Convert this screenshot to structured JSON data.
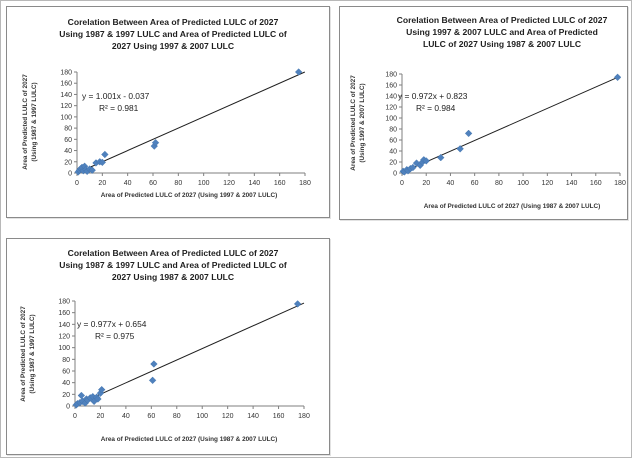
{
  "chart_data": [
    {
      "type": "scatter",
      "title": [
        "Corelation Between Area of Predicted LULC of 2027",
        "Using 1987 & 1997 LULC and Area of Predicted LULC of",
        "2027 Using 1997 & 2007 LULC"
      ],
      "xlabel": "Area of Predicted LULC of 2027 (Using 1997 & 2007 LULC)",
      "ylabel": [
        "Area of Predicted LULC of 2027",
        "(Using 1987 & 1997 LULC)"
      ],
      "xlim": [
        0,
        180
      ],
      "ylim": [
        0,
        180
      ],
      "x_ticks": [
        "0",
        "20",
        "40",
        "60",
        "80",
        "100",
        "120",
        "140",
        "160",
        "180"
      ],
      "y_ticks": [
        "0",
        "20",
        "40",
        "60",
        "80",
        "100",
        "120",
        "140",
        "160",
        "180"
      ],
      "grid": false,
      "legend": "none",
      "trendline": {
        "equation": "y = 1.001x - 0.037",
        "r2_label": "R² = 0.981",
        "slope": 1.001,
        "intercept": -0.037
      },
      "x": [
        1,
        2,
        3,
        4,
        5,
        6,
        7,
        8,
        10,
        12,
        15,
        18,
        20,
        22,
        61,
        62,
        175
      ],
      "y": [
        2,
        5,
        8,
        10,
        4,
        12,
        6,
        3,
        7,
        5,
        18,
        20,
        19,
        33,
        48,
        54,
        180
      ],
      "marker_color": "#4f81bd",
      "line_color": "#1f1f1f"
    },
    {
      "type": "scatter",
      "title": [
        "Corelation Between Area of Predicted LULC of 2027",
        "Using 1997 & 2007 LULC and Area of Predicted",
        "LULC of 2027 Using 1987 & 2007 LULC"
      ],
      "xlabel": "Area of Predicted LULC of 2027 (Using 1987 & 2007 LULC)",
      "ylabel": [
        "Area of Predicted LULC of 2027",
        "(Using 1997 & 2007 LULC)"
      ],
      "xlim": [
        0,
        180
      ],
      "ylim": [
        0,
        180
      ],
      "x_ticks": [
        "0",
        "20",
        "40",
        "60",
        "80",
        "100",
        "120",
        "140",
        "160",
        "180"
      ],
      "y_ticks": [
        "0",
        "20",
        "40",
        "60",
        "80",
        "100",
        "120",
        "140",
        "160",
        "180"
      ],
      "grid": false,
      "legend": "none",
      "trendline": {
        "equation": "y = 0.972x + 0.823",
        "r2_label": "R² = 0.984",
        "slope": 0.972,
        "intercept": 0.823
      },
      "x": [
        1,
        2,
        4,
        5,
        7,
        9,
        12,
        15,
        17,
        18,
        20,
        32,
        48,
        55,
        178
      ],
      "y": [
        3,
        2,
        6,
        4,
        8,
        10,
        18,
        14,
        20,
        24,
        22,
        28,
        44,
        72,
        174
      ],
      "marker_color": "#4f81bd",
      "line_color": "#1f1f1f"
    },
    {
      "type": "scatter",
      "title": [
        "Corelation Between Area of Predicted LULC of 2027",
        "Using 1987 & 1997 LULC and Area of Predicted LULC of",
        "2027 Using 1987 & 2007 LULC"
      ],
      "xlabel": "Area of Predicted LULC of 2027 (Using 1987 & 2007 LULC)",
      "ylabel": [
        "Area of Predicted LULC of 2027",
        "(Using 1987 & 1997 LULC)"
      ],
      "xlim": [
        0,
        180
      ],
      "ylim": [
        0,
        180
      ],
      "x_ticks": [
        "0",
        "20",
        "40",
        "60",
        "80",
        "100",
        "120",
        "140",
        "160",
        "180"
      ],
      "y_ticks": [
        "0",
        "20",
        "40",
        "60",
        "80",
        "100",
        "120",
        "140",
        "160",
        "180"
      ],
      "grid": false,
      "legend": "none",
      "trendline": {
        "equation": "y = 0.977x + 0.654",
        "r2_label": "R² = 0.975",
        "slope": 0.977,
        "intercept": 0.654
      },
      "x": [
        1,
        2,
        4,
        5,
        6,
        8,
        9,
        10,
        12,
        14,
        15,
        17,
        18,
        20,
        21,
        61,
        62,
        175
      ],
      "y": [
        2,
        4,
        6,
        18,
        8,
        5,
        12,
        10,
        14,
        16,
        8,
        15,
        12,
        22,
        28,
        44,
        72,
        175
      ],
      "marker_color": "#4f81bd",
      "line_color": "#1f1f1f"
    }
  ]
}
